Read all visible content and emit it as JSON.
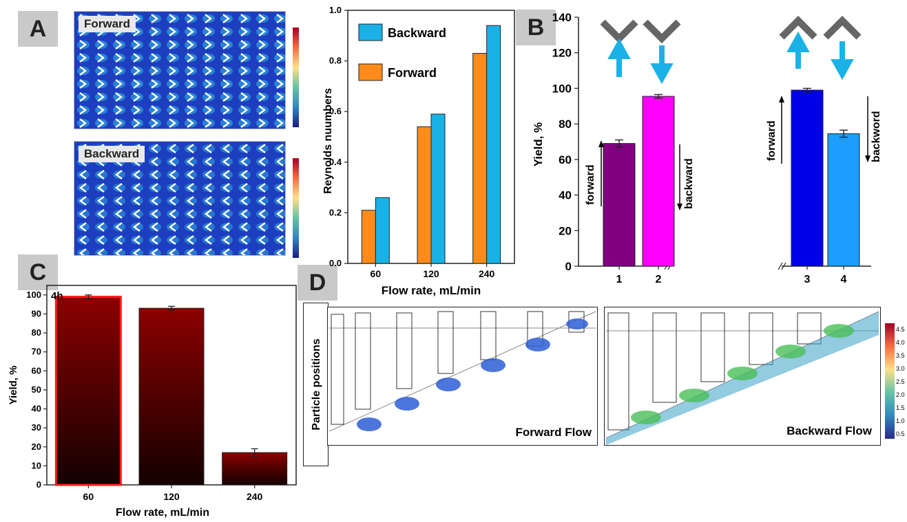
{
  "panels": {
    "A": "A",
    "B": "B",
    "C": "C",
    "D": "D"
  },
  "panelA": {
    "top_label": "Forward",
    "bottom_label": "Backward"
  },
  "chart_data": [
    {
      "id": "reynolds",
      "type": "bar",
      "categories": [
        "60",
        "120",
        "240"
      ],
      "series": [
        {
          "name": "Forward",
          "color": "#ff8c1a",
          "values": [
            0.21,
            0.54,
            0.83
          ]
        },
        {
          "name": "Backward",
          "color": "#1ab2e6",
          "values": [
            0.26,
            0.59,
            0.94
          ]
        }
      ],
      "xlabel": "Flow rate, mL/min",
      "ylabel": "Reynolds nuumbers",
      "ylim": [
        0,
        1.0
      ],
      "yticks": [
        "0.0",
        "0.2",
        "0.4",
        "0.6",
        "0.8",
        "1.0"
      ],
      "legend_position": "top-left"
    },
    {
      "id": "direction_yield",
      "type": "bar",
      "categories": [
        "1",
        "2",
        "3",
        "4"
      ],
      "values": [
        69,
        95.5,
        99,
        74.5
      ],
      "errors": [
        2,
        1,
        1,
        2
      ],
      "colors": [
        "#800080",
        "#ff00ff",
        "#0000e6",
        "#1a9eff"
      ],
      "ylabel": "Yield, %",
      "ylim": [
        0,
        140
      ],
      "yticks": [
        "0",
        "20",
        "40",
        "60",
        "80",
        "100",
        "120",
        "140"
      ],
      "annotations": [
        "forward",
        "backward",
        "forward",
        "backword"
      ]
    },
    {
      "id": "flowrate_yield",
      "type": "bar",
      "categories": [
        "60",
        "120",
        "240"
      ],
      "values": [
        99,
        93,
        17
      ],
      "errors": [
        1,
        1,
        2
      ],
      "xlabel": "Flow rate, mL/min",
      "ylabel": "Yield, %",
      "ylim": [
        0,
        105
      ],
      "yticks": [
        "0",
        "10",
        "20",
        "30",
        "40",
        "50",
        "60",
        "70",
        "80",
        "90",
        "100"
      ],
      "annotation": "4h"
    }
  ],
  "panelD": {
    "side_label": "Particle positions",
    "left_caption": "Forward Flow",
    "right_caption": "Backward Flow",
    "colorbar_ticks": [
      "4.5",
      "4.0",
      "3.5",
      "3.0",
      "2.5",
      "2.0",
      "1.5",
      "1.0",
      "0.5"
    ]
  }
}
